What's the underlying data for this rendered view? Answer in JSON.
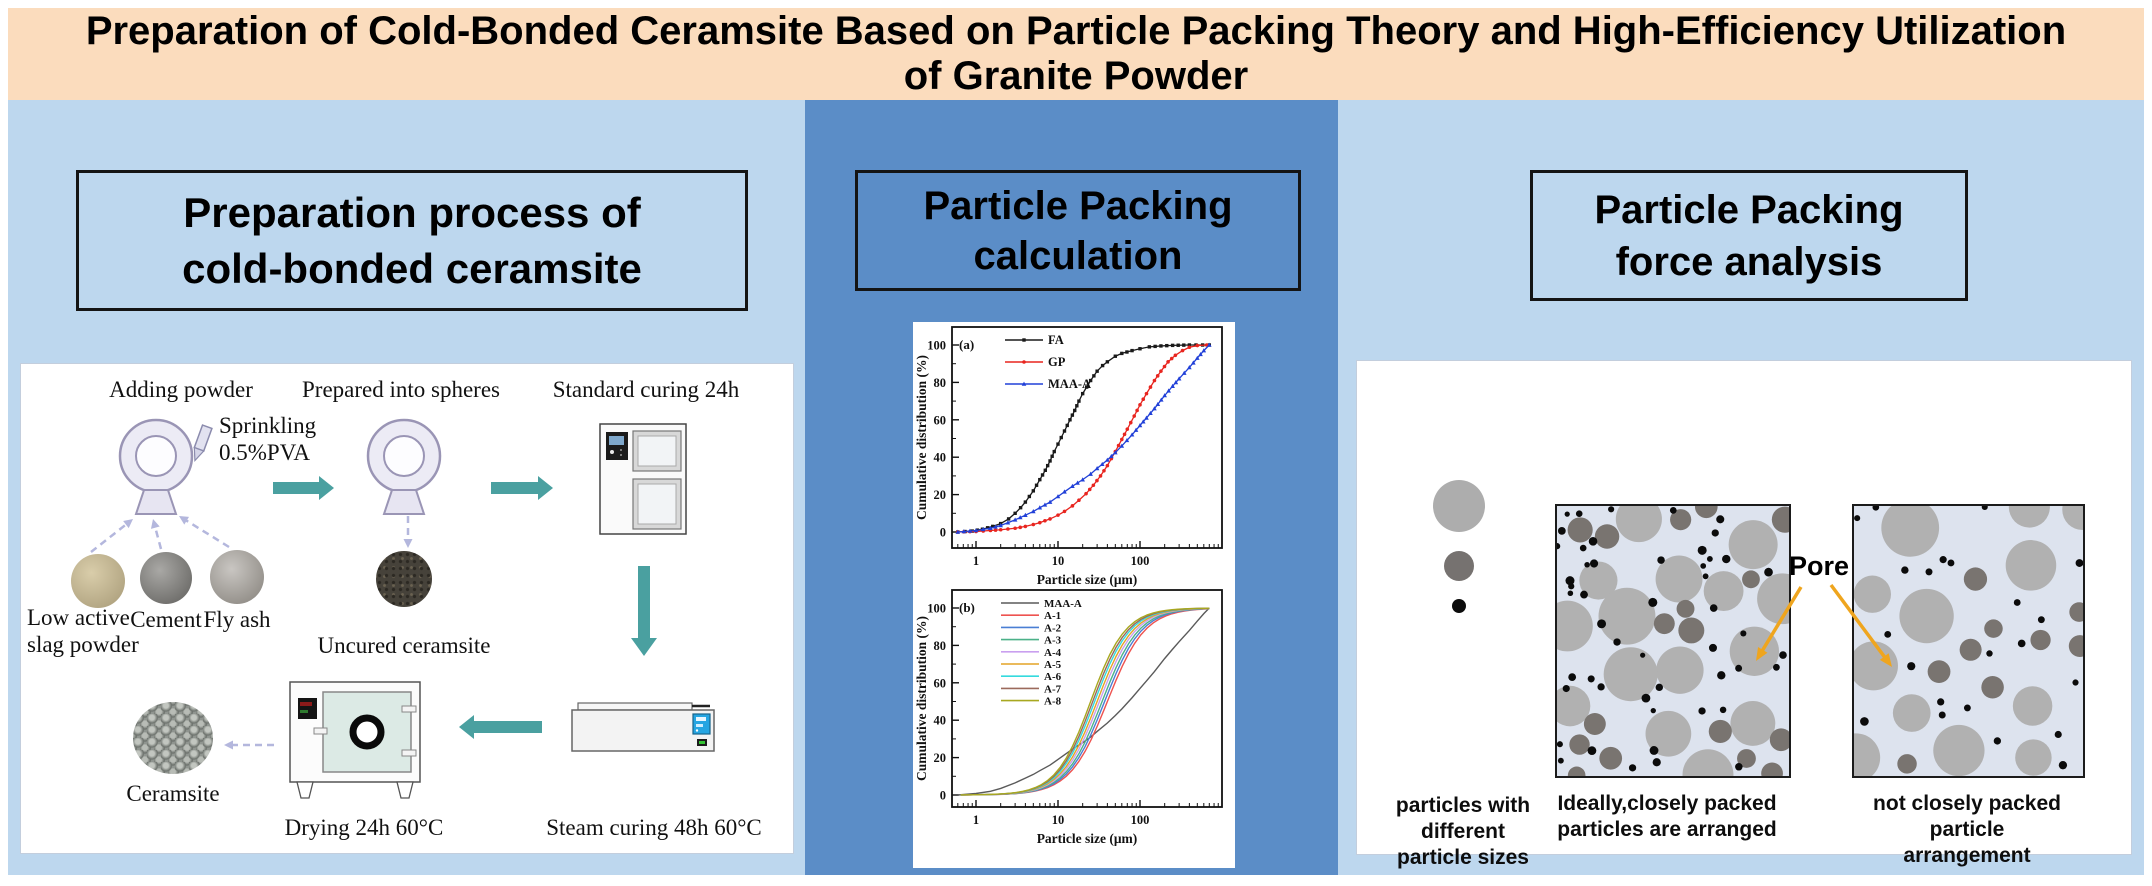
{
  "banner": {
    "line1": "Preparation of Cold-Bonded Ceramsite Based on Particle Packing Theory and High-Efficiency Utilization",
    "line2": "of Granite Powder"
  },
  "colors": {
    "banner_bg": "#fbdcbd",
    "light_blue": "#bdd7ee",
    "mid_blue": "#5b8dc7",
    "teal_arrow": "#4aa0a0",
    "dashed_arrow": "#b4b7dd",
    "pore_arrow": "#efa51e"
  },
  "left_panel": {
    "title_line1": "Preparation process of",
    "title_line2": "cold-bonded ceramsite",
    "labels": {
      "adding_powder": "Adding powder",
      "sprinkling_line1": "Sprinkling",
      "sprinkling_line2": "0.5%PVA",
      "prepared_into_spheres": "Prepared into spheres",
      "standard_curing": "Standard curing 24h",
      "low_active_line1": "Low active",
      "low_active_line2": "slag powder",
      "cement": "Cement",
      "fly_ash": "Fly ash",
      "uncured_ceramsite": "Uncured ceramsite",
      "steam_curing": "Steam curing 48h 60°C",
      "drying": "Drying 24h 60°C",
      "ceramsite": "Ceramsite"
    }
  },
  "mid_panel": {
    "title_line1": "Particle Packing",
    "title_line2": "calculation"
  },
  "right_panel": {
    "title_line1": "Particle Packing",
    "title_line2": "force analysis",
    "pore_label": "Pore",
    "caption_sizes_line1": "particles with different",
    "caption_sizes_line2": "particle sizes",
    "caption_ideal_line1": "Ideally,closely packed",
    "caption_ideal_line2": "particles are arranged",
    "caption_loose_line1": "not closely packed particle",
    "caption_loose_line2": "arrangement"
  },
  "chart_data": [
    {
      "type": "line",
      "panel_label": "(a)",
      "xlabel": "Particle size (μm)",
      "ylabel": "Cumulative distribution (%)",
      "xscale": "log",
      "xlim": [
        0.5,
        1000
      ],
      "ylim": [
        0,
        100
      ],
      "xticks": [
        1,
        10,
        100
      ],
      "yticks": [
        0,
        20,
        40,
        60,
        80,
        100
      ],
      "legend_position": "top-left",
      "series": [
        {
          "name": "FA",
          "color": "#1a1a1a",
          "marker": "square",
          "points": [
            [
              0.6,
              0
            ],
            [
              0.9,
              0.5
            ],
            [
              1.2,
              1.5
            ],
            [
              1.6,
              3
            ],
            [
              2,
              4.5
            ],
            [
              2.5,
              7
            ],
            [
              3,
              10
            ],
            [
              3.5,
              13
            ],
            [
              4,
              16
            ],
            [
              5,
              22
            ],
            [
              6,
              28
            ],
            [
              7,
              33
            ],
            [
              8,
              38
            ],
            [
              9,
              43
            ],
            [
              10,
              47
            ],
            [
              12,
              54
            ],
            [
              14,
              60
            ],
            [
              16,
              65
            ],
            [
              18,
              70
            ],
            [
              20,
              74
            ],
            [
              25,
              81
            ],
            [
              30,
              86
            ],
            [
              35,
              89
            ],
            [
              40,
              91
            ],
            [
              50,
              94
            ],
            [
              60,
              95.5
            ],
            [
              80,
              97
            ],
            [
              100,
              98
            ],
            [
              130,
              99
            ],
            [
              180,
              99.5
            ],
            [
              250,
              99.8
            ],
            [
              400,
              100
            ],
            [
              700,
              100
            ]
          ]
        },
        {
          "name": "GP",
          "color": "#e8251f",
          "marker": "circle",
          "points": [
            [
              0.6,
              0
            ],
            [
              1,
              0.3
            ],
            [
              1.5,
              0.8
            ],
            [
              2,
              1.2
            ],
            [
              3,
              2
            ],
            [
              4,
              3
            ],
            [
              5,
              4
            ],
            [
              6,
              5
            ],
            [
              8,
              7
            ],
            [
              10,
              9
            ],
            [
              12,
              11
            ],
            [
              15,
              14
            ],
            [
              18,
              17
            ],
            [
              22,
              20.5
            ],
            [
              27,
              25
            ],
            [
              33,
              30
            ],
            [
              40,
              35.5
            ],
            [
              50,
              43
            ],
            [
              60,
              49.5
            ],
            [
              70,
              55
            ],
            [
              85,
              62
            ],
            [
              100,
              68
            ],
            [
              120,
              74
            ],
            [
              150,
              81
            ],
            [
              180,
              86
            ],
            [
              220,
              91
            ],
            [
              270,
              94.5
            ],
            [
              330,
              97
            ],
            [
              400,
              98.8
            ],
            [
              500,
              99.7
            ],
            [
              650,
              100
            ]
          ]
        },
        {
          "name": "MAA-A",
          "color": "#2140d8",
          "marker": "triangle",
          "points": [
            [
              0.6,
              0
            ],
            [
              1,
              0.8
            ],
            [
              1.5,
              2
            ],
            [
              2,
              3.5
            ],
            [
              3,
              6.5
            ],
            [
              4,
              9
            ],
            [
              5,
              11
            ],
            [
              6,
              13
            ],
            [
              8,
              16
            ],
            [
              10,
              19
            ],
            [
              12,
              21.5
            ],
            [
              15,
              24.5
            ],
            [
              20,
              28
            ],
            [
              25,
              31
            ],
            [
              30,
              34
            ],
            [
              40,
              38.5
            ],
            [
              50,
              42.5
            ],
            [
              60,
              46
            ],
            [
              80,
              52
            ],
            [
              100,
              57
            ],
            [
              120,
              61
            ],
            [
              150,
              66
            ],
            [
              200,
              73
            ],
            [
              250,
              78
            ],
            [
              300,
              82
            ],
            [
              400,
              88
            ],
            [
              500,
              93
            ],
            [
              600,
              97
            ],
            [
              700,
              100
            ]
          ]
        }
      ]
    },
    {
      "type": "line",
      "panel_label": "(b)",
      "xlabel": "Particle size (μm)",
      "ylabel": "Cumulative distribution (%)",
      "xscale": "log",
      "xlim": [
        0.5,
        1000
      ],
      "ylim": [
        0,
        100
      ],
      "xticks": [
        1,
        10,
        100
      ],
      "yticks": [
        0,
        20,
        40,
        60,
        80,
        100
      ],
      "legend_position": "top-left",
      "series": [
        {
          "name": "MAA-A",
          "color": "#5a5a5a",
          "points": [
            [
              0.6,
              0
            ],
            [
              1,
              0.8
            ],
            [
              1.5,
              2
            ],
            [
              2,
              3.5
            ],
            [
              3,
              6.5
            ],
            [
              4,
              9
            ],
            [
              5,
              11
            ],
            [
              6,
              13
            ],
            [
              8,
              16
            ],
            [
              10,
              19
            ],
            [
              12,
              21.5
            ],
            [
              15,
              24.5
            ],
            [
              20,
              28
            ],
            [
              25,
              31
            ],
            [
              30,
              34
            ],
            [
              40,
              38.5
            ],
            [
              50,
              42.5
            ],
            [
              60,
              46
            ],
            [
              80,
              52
            ],
            [
              100,
              57
            ],
            [
              120,
              61
            ],
            [
              150,
              66
            ],
            [
              200,
              73
            ],
            [
              250,
              78
            ],
            [
              300,
              82
            ],
            [
              400,
              88
            ],
            [
              500,
              93
            ],
            [
              600,
              97
            ],
            [
              700,
              100
            ]
          ]
        },
        {
          "name": "A-1",
          "color": "#ee5350",
          "logistic": {
            "d50": 40,
            "k": 1.9
          }
        },
        {
          "name": "A-2",
          "color": "#4a7fd4",
          "logistic": {
            "d50": 37,
            "k": 1.92
          }
        },
        {
          "name": "A-3",
          "color": "#4cb189",
          "logistic": {
            "d50": 34.5,
            "k": 1.94
          }
        },
        {
          "name": "A-4",
          "color": "#c9a0ef",
          "logistic": {
            "d50": 32,
            "k": 1.96
          }
        },
        {
          "name": "A-5",
          "color": "#e3a426",
          "logistic": {
            "d50": 30,
            "k": 1.98
          }
        },
        {
          "name": "A-6",
          "color": "#35dade",
          "logistic": {
            "d50": 28,
            "k": 2.0
          }
        },
        {
          "name": "A-7",
          "color": "#9b6a5c",
          "logistic": {
            "d50": 26.5,
            "k": 2.02
          }
        },
        {
          "name": "A-8",
          "color": "#a8a820",
          "logistic": {
            "d50": 25,
            "k": 2.05
          }
        }
      ]
    }
  ]
}
